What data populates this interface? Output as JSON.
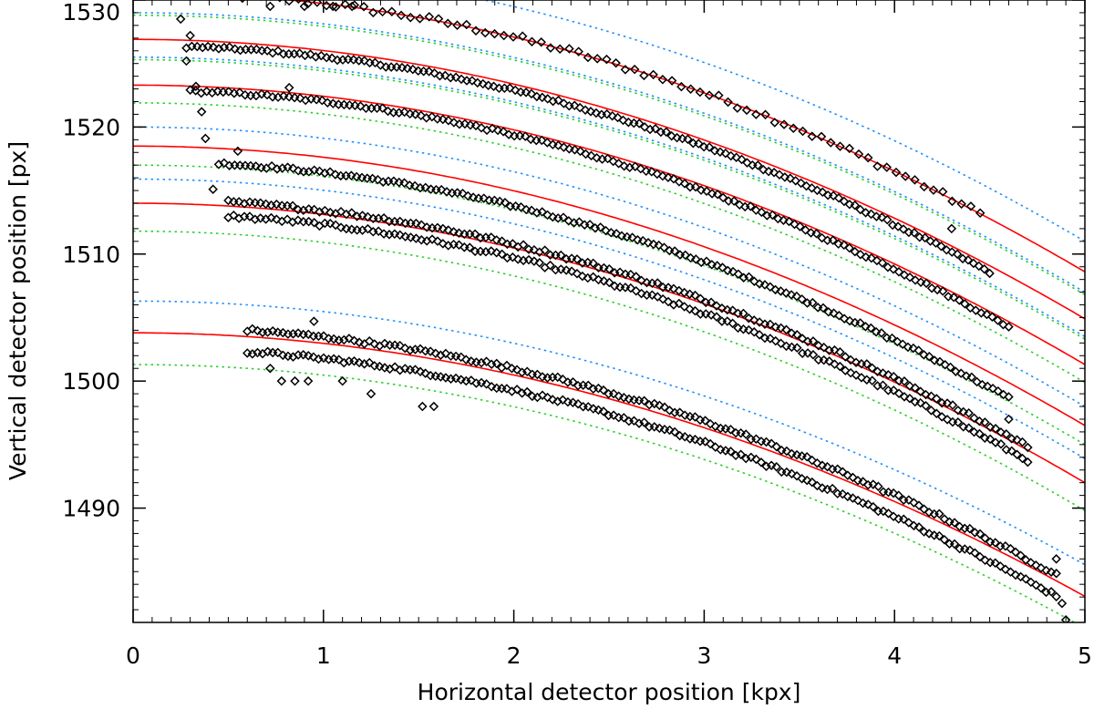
{
  "chart_data": {
    "type": "scatter",
    "title": "",
    "xlabel": "Horizontal detector position [kpx]",
    "ylabel": "Vertical detector position [px]",
    "xlim": [
      0,
      5
    ],
    "ylim": [
      1481,
      1530
    ],
    "x_ticks": [
      0,
      1,
      2,
      3,
      4,
      5
    ],
    "y_ticks": [
      1490,
      1500,
      1510,
      1520,
      1530
    ],
    "x_minor_step": 0.1,
    "y_minor_step": 1,
    "grid": false,
    "legend": "none",
    "colors": {
      "fit": "#ff0000",
      "upper_bound": "#1e90ff",
      "lower_bound": "#2bd02b",
      "points": "#000000"
    },
    "fit_curves": [
      {
        "vertex_y": 1530.6,
        "curvature": 0.88,
        "upper_offset": 2.4,
        "lower_offset": -1.8,
        "bands_from_x": 0.0
      },
      {
        "vertex_y": 1526.9,
        "curvature": 0.88,
        "upper_offset": 2.1,
        "lower_offset": -1.6,
        "bands_from_x": 0.0
      },
      {
        "vertex_y": 1523.3,
        "curvature": 0.88,
        "upper_offset": 2.2,
        "lower_offset": -1.4,
        "bands_from_x": 0.0
      },
      {
        "vertex_y": 1518.5,
        "curvature": 0.88,
        "upper_offset": 1.5,
        "lower_offset": -1.5,
        "bands_from_x": 0.0
      },
      {
        "vertex_y": 1514.0,
        "curvature": 0.88,
        "upper_offset": 1.9,
        "lower_offset": -2.2,
        "bands_from_x": 0.0
      },
      {
        "vertex_y": 1503.8,
        "curvature": 0.83,
        "upper_offset": 2.5,
        "lower_offset": -2.5,
        "bands_from_x": 0.0
      }
    ],
    "series": [
      {
        "fit_index": 0,
        "x_start": 0.28,
        "x_end": 4.45,
        "count": 86,
        "offsets": [
          0
        ],
        "jitter": 0.25
      },
      {
        "fit_index": 1,
        "x_start": 0.28,
        "x_end": 4.5,
        "count": 150,
        "offsets": [
          -0.5
        ],
        "jitter": 0.12
      },
      {
        "fit_index": 2,
        "x_start": 0.3,
        "x_end": 4.6,
        "count": 150,
        "offsets": [
          -0.4
        ],
        "jitter": 0.12
      },
      {
        "fit_index": 3,
        "x_start": 0.45,
        "x_end": 4.6,
        "count": 150,
        "offsets": [
          -1.2
        ],
        "jitter": 0.12
      },
      {
        "fit_index": 4,
        "x_start": 0.5,
        "x_end": 4.7,
        "count": 150,
        "offsets": [
          -0.8,
          0.3
        ],
        "jitter": 0.15
      },
      {
        "fit_index": 5,
        "x_start": 0.6,
        "x_end": 4.85,
        "count": 160,
        "offsets": [
          -1.2,
          0.5
        ],
        "jitter": 0.15
      }
    ],
    "outliers": [
      {
        "x": 0.25,
        "y": 1528.5
      },
      {
        "x": 0.28,
        "y": 1525.2
      },
      {
        "x": 0.3,
        "y": 1527.2
      },
      {
        "x": 0.33,
        "y": 1523.2
      },
      {
        "x": 0.36,
        "y": 1521.2
      },
      {
        "x": 0.38,
        "y": 1519.1
      },
      {
        "x": 0.42,
        "y": 1515.1
      },
      {
        "x": 0.55,
        "y": 1518.1
      },
      {
        "x": 0.82,
        "y": 1523.1
      },
      {
        "x": 0.72,
        "y": 1501.0
      },
      {
        "x": 0.78,
        "y": 1500.0
      },
      {
        "x": 0.85,
        "y": 1500.0
      },
      {
        "x": 0.92,
        "y": 1500.0
      },
      {
        "x": 0.95,
        "y": 1504.7
      },
      {
        "x": 1.1,
        "y": 1500.0
      },
      {
        "x": 1.25,
        "y": 1499.0
      },
      {
        "x": 1.52,
        "y": 1498.0
      },
      {
        "x": 1.58,
        "y": 1498.0
      },
      {
        "x": 4.3,
        "y": 1512.0
      },
      {
        "x": 4.6,
        "y": 1497.0
      },
      {
        "x": 4.85,
        "y": 1486.0
      },
      {
        "x": 4.88,
        "y": 1482.5
      },
      {
        "x": 4.9,
        "y": 1481.2
      },
      {
        "x": 0.72,
        "y": 1529.5
      },
      {
        "x": 0.9,
        "y": 1529.5
      },
      {
        "x": 1.05,
        "y": 1529.5
      },
      {
        "x": 1.15,
        "y": 1529.5
      }
    ]
  }
}
